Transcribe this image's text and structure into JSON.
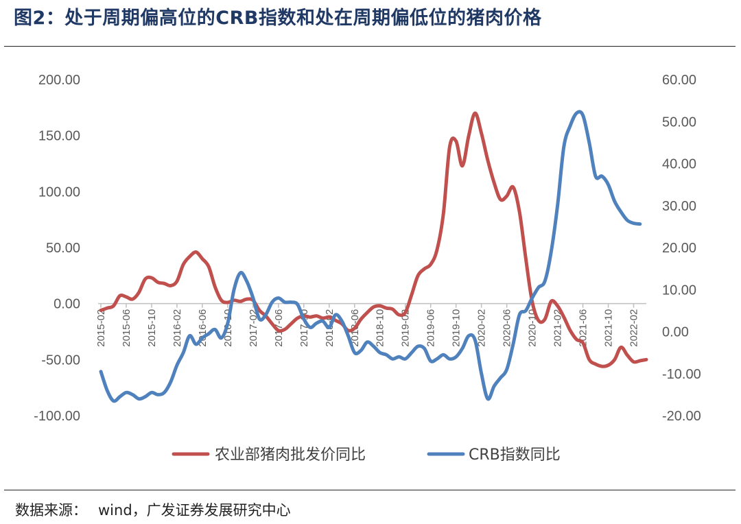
{
  "header": {
    "title": "图2：处于周期偏高位的CRB指数和处在周期偏低位的猪肉价格"
  },
  "footer": {
    "source_label": "数据来源：",
    "source_text": "wind，广发证券发展研究中心"
  },
  "colors": {
    "title": "#1f3864",
    "series_pork": "#c0504d",
    "series_crb": "#4f81bd",
    "axis_text": "#595959"
  },
  "chart_data": {
    "type": "line",
    "title": "",
    "y_left": {
      "ticks": [
        "200.00",
        "150.00",
        "100.00",
        "50.00",
        "0.00",
        "-50.00",
        "-100.00"
      ],
      "ylim": [
        -100,
        200
      ]
    },
    "y_right": {
      "ticks": [
        "60.00",
        "50.00",
        "40.00",
        "30.00",
        "20.00",
        "10.00",
        "0.00",
        "-10.00",
        "-20.00"
      ],
      "ylim": [
        -20,
        60
      ]
    },
    "x_ticks": [
      "2015-02",
      "2015-06",
      "2015-10",
      "2016-02",
      "2016-06",
      "2016-10",
      "2017-02",
      "2017-06",
      "2017-10",
      "2018-02",
      "2018-06",
      "2018-10",
      "2019-02",
      "2019-06",
      "2019-10",
      "2020-02",
      "2020-06",
      "2020-10",
      "2021-02",
      "2021-06",
      "2021-10",
      "2022-02"
    ],
    "grid": false,
    "legend_position": "bottom",
    "series": [
      {
        "name": "农业部猪肉批发价同比",
        "axis": "left",
        "color": "#c0504d",
        "points": [
          [
            "2015-02",
            -6
          ],
          [
            "2015-03",
            -4
          ],
          [
            "2015-04",
            -2
          ],
          [
            "2015-05",
            7
          ],
          [
            "2015-06",
            6
          ],
          [
            "2015-07",
            4
          ],
          [
            "2015-08",
            10
          ],
          [
            "2015-09",
            22
          ],
          [
            "2015-10",
            23
          ],
          [
            "2015-11",
            19
          ],
          [
            "2015-12",
            18
          ],
          [
            "2016-01",
            16
          ],
          [
            "2016-02",
            20
          ],
          [
            "2016-03",
            35
          ],
          [
            "2016-04",
            42
          ],
          [
            "2016-05",
            46
          ],
          [
            "2016-06",
            40
          ],
          [
            "2016-07",
            33
          ],
          [
            "2016-08",
            15
          ],
          [
            "2016-09",
            3
          ],
          [
            "2016-10",
            1
          ],
          [
            "2016-11",
            3
          ],
          [
            "2016-12",
            2
          ],
          [
            "2017-01",
            4
          ],
          [
            "2017-02",
            3
          ],
          [
            "2017-03",
            -6
          ],
          [
            "2017-04",
            -11
          ],
          [
            "2017-05",
            -18
          ],
          [
            "2017-06",
            -24
          ],
          [
            "2017-07",
            -23
          ],
          [
            "2017-08",
            -18
          ],
          [
            "2017-09",
            -13
          ],
          [
            "2017-10",
            -11
          ],
          [
            "2017-11",
            -12
          ],
          [
            "2017-12",
            -11
          ],
          [
            "2018-01",
            -13
          ],
          [
            "2018-02",
            -12
          ],
          [
            "2018-03",
            -15
          ],
          [
            "2018-04",
            -18
          ],
          [
            "2018-05",
            -24
          ],
          [
            "2018-06",
            -22
          ],
          [
            "2018-07",
            -14
          ],
          [
            "2018-08",
            -8
          ],
          [
            "2018-09",
            -3
          ],
          [
            "2018-10",
            -2
          ],
          [
            "2018-11",
            -4
          ],
          [
            "2018-12",
            -5
          ],
          [
            "2019-01",
            -10
          ],
          [
            "2019-02",
            -8
          ],
          [
            "2019-03",
            8
          ],
          [
            "2019-04",
            25
          ],
          [
            "2019-05",
            31
          ],
          [
            "2019-06",
            35
          ],
          [
            "2019-07",
            48
          ],
          [
            "2019-08",
            80
          ],
          [
            "2019-09",
            140
          ],
          [
            "2019-10",
            145
          ],
          [
            "2019-11",
            123
          ],
          [
            "2019-12",
            150
          ],
          [
            "2020-01",
            170
          ],
          [
            "2020-02",
            152
          ],
          [
            "2020-03",
            128
          ],
          [
            "2020-04",
            108
          ],
          [
            "2020-05",
            93
          ],
          [
            "2020-06",
            96
          ],
          [
            "2020-07",
            104
          ],
          [
            "2020-08",
            82
          ],
          [
            "2020-09",
            40
          ],
          [
            "2020-10",
            2
          ],
          [
            "2020-11",
            -15
          ],
          [
            "2020-12",
            -14
          ],
          [
            "2021-01",
            2
          ],
          [
            "2021-02",
            -2
          ],
          [
            "2021-03",
            -12
          ],
          [
            "2021-04",
            -24
          ],
          [
            "2021-05",
            -32
          ],
          [
            "2021-06",
            -35
          ],
          [
            "2021-07",
            -50
          ],
          [
            "2021-08",
            -54
          ],
          [
            "2021-09",
            -56
          ],
          [
            "2021-10",
            -55
          ],
          [
            "2021-11",
            -50
          ],
          [
            "2021-12",
            -39
          ],
          [
            "2022-01",
            -46
          ],
          [
            "2022-02",
            -52
          ],
          [
            "2022-03",
            -51
          ],
          [
            "2022-04",
            -50
          ]
        ]
      },
      {
        "name": "CRB指数同比",
        "axis": "right",
        "color": "#4f81bd",
        "points": [
          [
            "2015-02",
            -9.5
          ],
          [
            "2015-03",
            -14
          ],
          [
            "2015-04",
            -16.5
          ],
          [
            "2015-05",
            -15.5
          ],
          [
            "2015-06",
            -14.5
          ],
          [
            "2015-07",
            -15
          ],
          [
            "2015-08",
            -16
          ],
          [
            "2015-09",
            -15.5
          ],
          [
            "2015-10",
            -14.5
          ],
          [
            "2015-11",
            -15
          ],
          [
            "2015-12",
            -14.5
          ],
          [
            "2016-01",
            -12
          ],
          [
            "2016-02",
            -8
          ],
          [
            "2016-03",
            -5
          ],
          [
            "2016-04",
            -1
          ],
          [
            "2016-05",
            -3
          ],
          [
            "2016-06",
            -1.5
          ],
          [
            "2016-07",
            -0.5
          ],
          [
            "2016-08",
            0.5
          ],
          [
            "2016-09",
            -1.5
          ],
          [
            "2016-10",
            2
          ],
          [
            "2016-11",
            10
          ],
          [
            "2016-12",
            14
          ],
          [
            "2017-01",
            12
          ],
          [
            "2017-02",
            8
          ],
          [
            "2017-03",
            3
          ],
          [
            "2017-04",
            4
          ],
          [
            "2017-05",
            7
          ],
          [
            "2017-06",
            8
          ],
          [
            "2017-07",
            7
          ],
          [
            "2017-08",
            7
          ],
          [
            "2017-09",
            6.5
          ],
          [
            "2017-10",
            3
          ],
          [
            "2017-11",
            1
          ],
          [
            "2017-12",
            2
          ],
          [
            "2018-01",
            2.5
          ],
          [
            "2018-02",
            1
          ],
          [
            "2018-03",
            4
          ],
          [
            "2018-04",
            2.5
          ],
          [
            "2018-05",
            -1
          ],
          [
            "2018-06",
            -5
          ],
          [
            "2018-07",
            -4.5
          ],
          [
            "2018-08",
            -2.5
          ],
          [
            "2018-09",
            -3.5
          ],
          [
            "2018-10",
            -5
          ],
          [
            "2018-11",
            -5.5
          ],
          [
            "2018-12",
            -6.5
          ],
          [
            "2019-01",
            -6
          ],
          [
            "2019-02",
            -6.5
          ],
          [
            "2019-03",
            -5
          ],
          [
            "2019-04",
            -3.5
          ],
          [
            "2019-05",
            -4
          ],
          [
            "2019-06",
            -7
          ],
          [
            "2019-07",
            -6.5
          ],
          [
            "2019-08",
            -5.5
          ],
          [
            "2019-09",
            -6.5
          ],
          [
            "2019-10",
            -6
          ],
          [
            "2019-11",
            -4
          ],
          [
            "2019-12",
            -1
          ],
          [
            "2020-01",
            -2
          ],
          [
            "2020-02",
            -10
          ],
          [
            "2020-03",
            -16
          ],
          [
            "2020-04",
            -13
          ],
          [
            "2020-05",
            -11
          ],
          [
            "2020-06",
            -9
          ],
          [
            "2020-07",
            -3
          ],
          [
            "2020-08",
            4
          ],
          [
            "2020-09",
            5
          ],
          [
            "2020-10",
            8
          ],
          [
            "2020-11",
            10.5
          ],
          [
            "2020-12",
            12
          ],
          [
            "2021-01",
            19
          ],
          [
            "2021-02",
            30
          ],
          [
            "2021-03",
            44
          ],
          [
            "2021-04",
            49
          ],
          [
            "2021-05",
            52
          ],
          [
            "2021-06",
            51.5
          ],
          [
            "2021-07",
            45
          ],
          [
            "2021-08",
            37
          ],
          [
            "2021-09",
            37
          ],
          [
            "2021-10",
            35
          ],
          [
            "2021-11",
            31
          ],
          [
            "2021-12",
            28.5
          ],
          [
            "2022-01",
            26.5
          ],
          [
            "2022-02",
            25.8
          ],
          [
            "2022-03",
            25.6
          ]
        ]
      }
    ]
  }
}
